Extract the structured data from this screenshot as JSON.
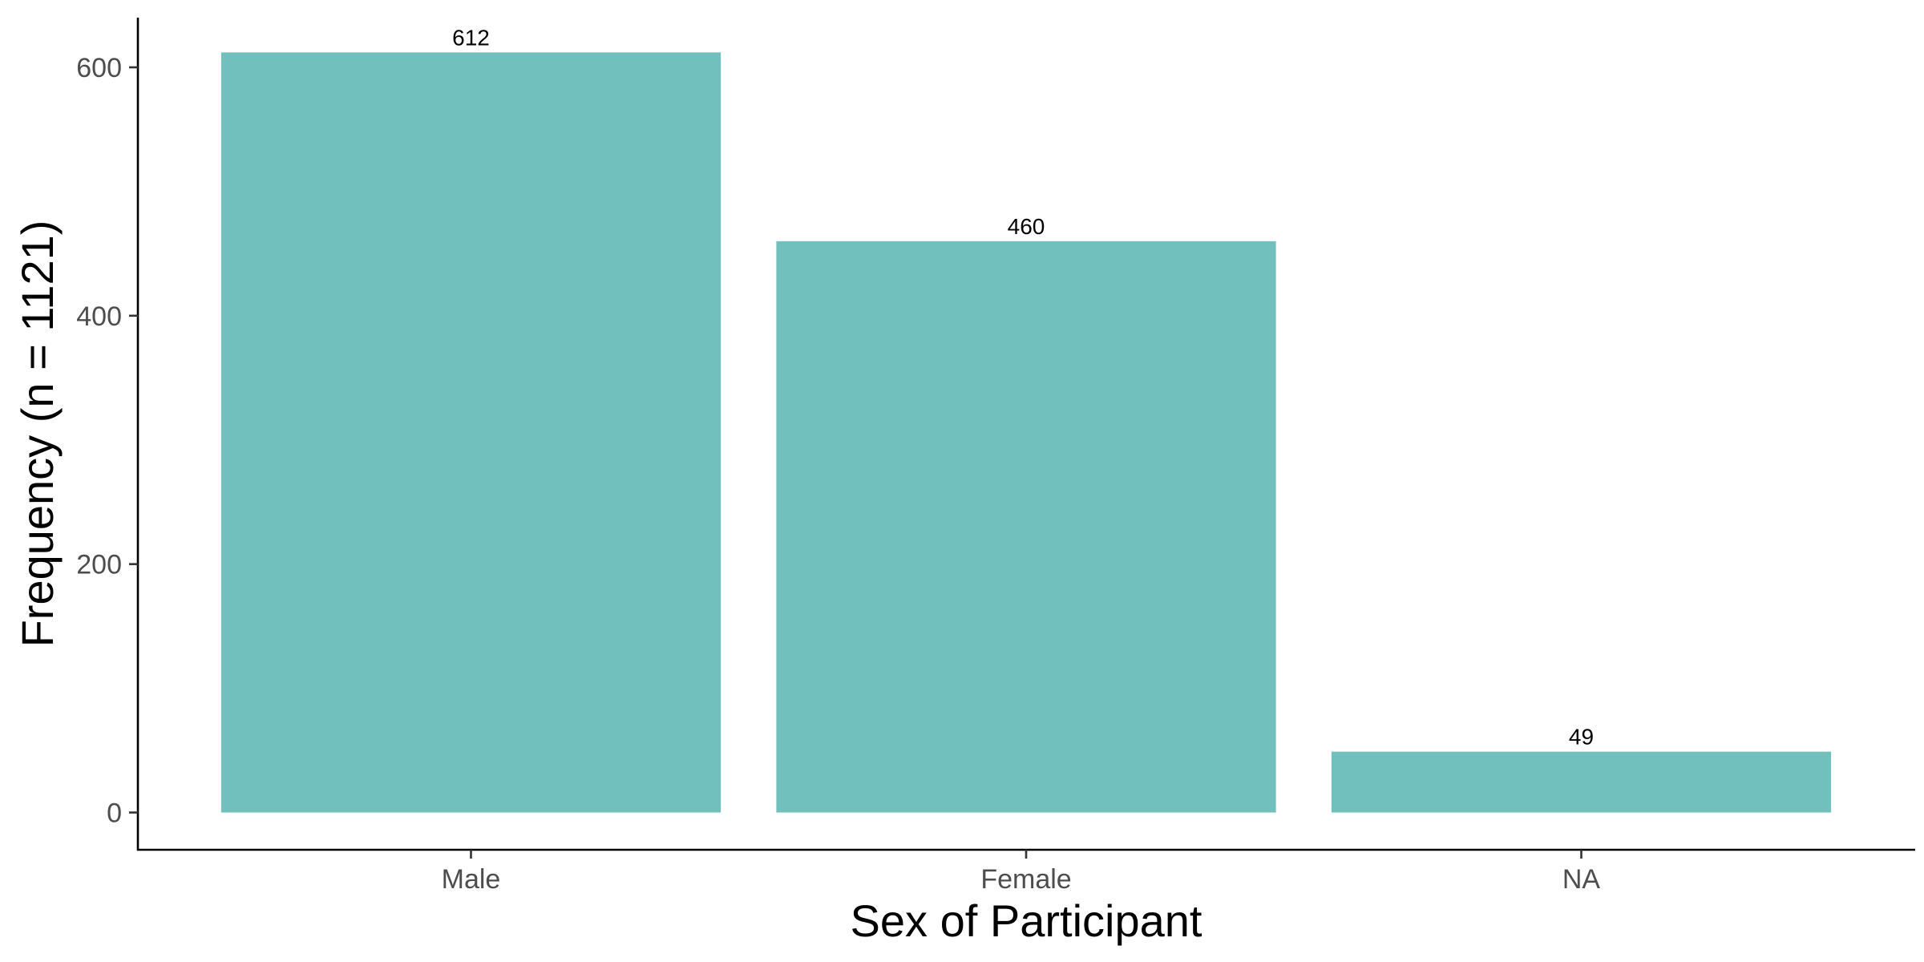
{
  "chart_data": {
    "type": "bar",
    "categories": [
      "Male",
      "Female",
      "NA"
    ],
    "values": [
      612,
      460,
      49
    ],
    "data_labels": [
      "612",
      "460",
      "49"
    ],
    "title": "",
    "xlabel": "Sex of Participant",
    "ylabel": "Frequency (n = 1121)",
    "ylim": [
      -30,
      640
    ],
    "yticks": [
      0,
      200,
      400,
      600
    ],
    "ytick_labels": [
      "0",
      "200",
      "400",
      "600"
    ],
    "bar_color": "#72c0bd",
    "grid": false,
    "legend": "none"
  }
}
